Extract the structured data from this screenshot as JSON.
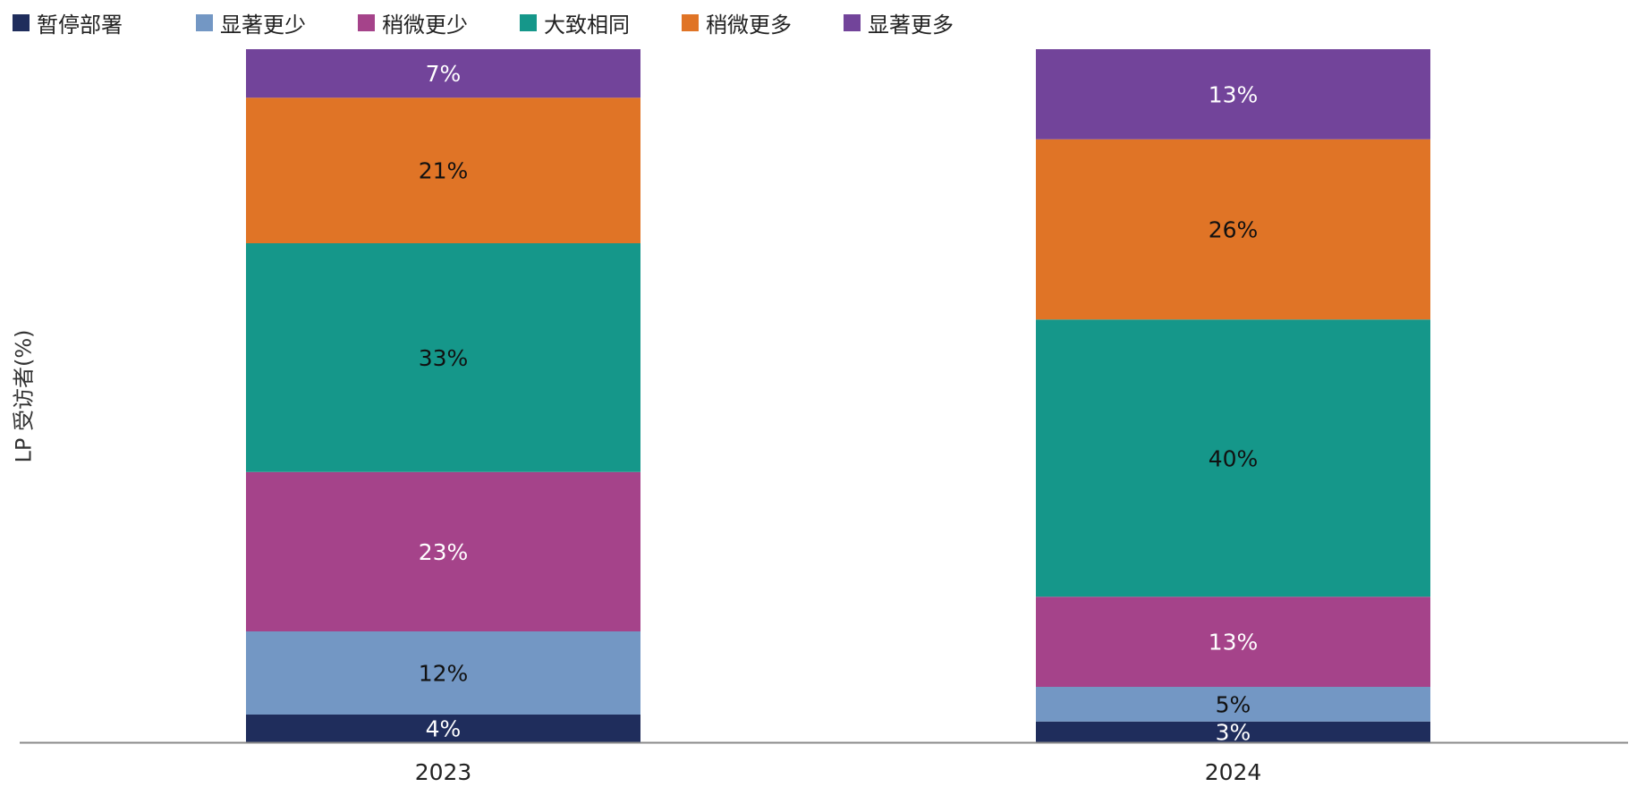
{
  "chart_data": {
    "type": "bar",
    "stacked": true,
    "title": "",
    "xlabel": "",
    "ylabel": "LP 受访者(%)",
    "ylim": [
      0,
      100
    ],
    "grid": false,
    "legend_position": "top-left",
    "categories": [
      "2023",
      "2024"
    ],
    "series": [
      {
        "name": "暂停部署",
        "color": "#1f2d5c",
        "label_color": "#ffffff",
        "values": [
          4,
          3
        ]
      },
      {
        "name": "显著更少",
        "color": "#7397c4",
        "label_color": "#111111",
        "values": [
          12,
          5
        ]
      },
      {
        "name": "稍微更少",
        "color": "#a5438a",
        "label_color": "#ffffff",
        "values": [
          23,
          13
        ]
      },
      {
        "name": "大致相同",
        "color": "#15978a",
        "label_color": "#111111",
        "values": [
          33,
          40
        ]
      },
      {
        "name": "稍微更多",
        "color": "#e07426",
        "label_color": "#111111",
        "values": [
          21,
          26
        ]
      },
      {
        "name": "显著更多",
        "color": "#72449a",
        "label_color": "#ffffff",
        "values": [
          7,
          13
        ]
      }
    ],
    "value_suffix": "%"
  }
}
